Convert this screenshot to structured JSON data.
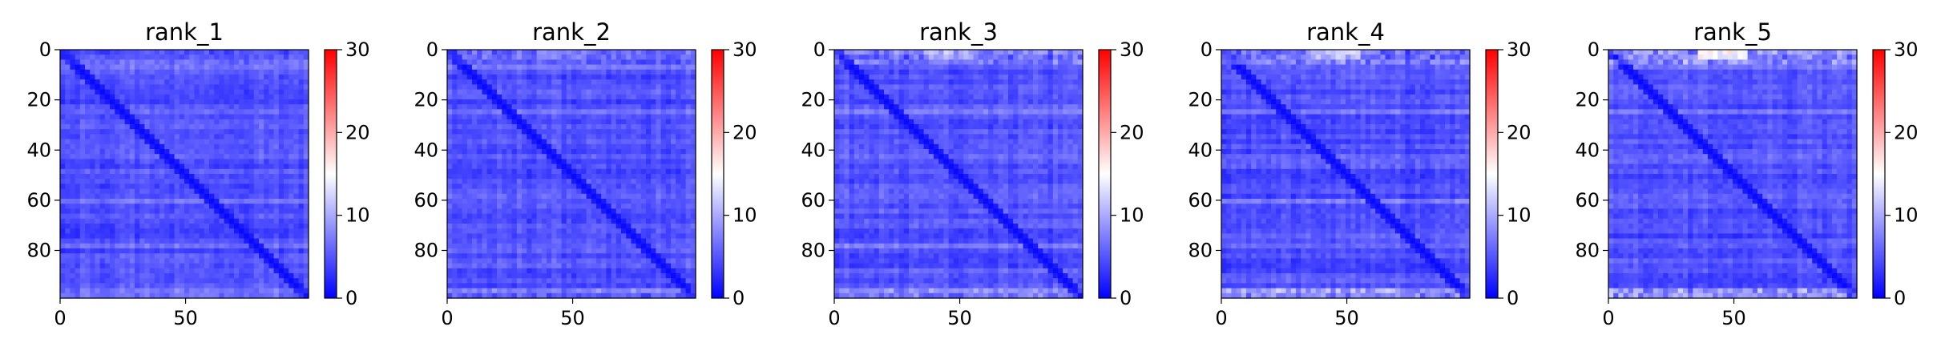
{
  "chart_data": [
    {
      "type": "heatmap",
      "title": "rank_1",
      "x_ticks": [
        "0",
        "50"
      ],
      "x_tick_values": [
        0,
        50
      ],
      "y_ticks": [
        "0",
        "20",
        "40",
        "60",
        "80"
      ],
      "y_tick_values": [
        0,
        20,
        40,
        60,
        80
      ],
      "matrix_size": 100,
      "xlim": [
        0,
        99
      ],
      "ylim": [
        99,
        0
      ],
      "colormap": "bwr",
      "color_range": [
        0,
        30
      ],
      "colorbar_ticks": [
        "0",
        "10",
        "20",
        "30"
      ],
      "colorbar_tick_values": [
        0,
        10,
        20,
        30
      ],
      "grid": false
    },
    {
      "type": "heatmap",
      "title": "rank_2",
      "x_ticks": [
        "0",
        "50"
      ],
      "x_tick_values": [
        0,
        50
      ],
      "y_ticks": [
        "0",
        "20",
        "40",
        "60",
        "80"
      ],
      "y_tick_values": [
        0,
        20,
        40,
        60,
        80
      ],
      "matrix_size": 100,
      "xlim": [
        0,
        99
      ],
      "ylim": [
        99,
        0
      ],
      "colormap": "bwr",
      "color_range": [
        0,
        30
      ],
      "colorbar_ticks": [
        "0",
        "10",
        "20",
        "30"
      ],
      "colorbar_tick_values": [
        0,
        10,
        20,
        30
      ],
      "grid": false
    },
    {
      "type": "heatmap",
      "title": "rank_3",
      "x_ticks": [
        "0",
        "50"
      ],
      "x_tick_values": [
        0,
        50
      ],
      "y_ticks": [
        "0",
        "20",
        "40",
        "60",
        "80"
      ],
      "y_tick_values": [
        0,
        20,
        40,
        60,
        80
      ],
      "matrix_size": 100,
      "xlim": [
        0,
        99
      ],
      "ylim": [
        99,
        0
      ],
      "colormap": "bwr",
      "color_range": [
        0,
        30
      ],
      "colorbar_ticks": [
        "0",
        "10",
        "20",
        "30"
      ],
      "colorbar_tick_values": [
        0,
        10,
        20,
        30
      ],
      "grid": false
    },
    {
      "type": "heatmap",
      "title": "rank_4",
      "x_ticks": [
        "0",
        "50"
      ],
      "x_tick_values": [
        0,
        50
      ],
      "y_ticks": [
        "0",
        "20",
        "40",
        "60",
        "80"
      ],
      "y_tick_values": [
        0,
        20,
        40,
        60,
        80
      ],
      "matrix_size": 100,
      "xlim": [
        0,
        99
      ],
      "ylim": [
        99,
        0
      ],
      "colormap": "bwr",
      "color_range": [
        0,
        30
      ],
      "colorbar_ticks": [
        "0",
        "10",
        "20",
        "30"
      ],
      "colorbar_tick_values": [
        0,
        10,
        20,
        30
      ],
      "grid": false
    },
    {
      "type": "heatmap",
      "title": "rank_5",
      "x_ticks": [
        "0",
        "50"
      ],
      "x_tick_values": [
        0,
        50
      ],
      "y_ticks": [
        "0",
        "20",
        "40",
        "60",
        "80"
      ],
      "y_tick_values": [
        0,
        20,
        40,
        60,
        80
      ],
      "matrix_size": 100,
      "xlim": [
        0,
        99
      ],
      "ylim": [
        99,
        0
      ],
      "colormap": "bwr",
      "color_range": [
        0,
        30
      ],
      "colorbar_ticks": [
        "0",
        "10",
        "20",
        "30"
      ],
      "colorbar_tick_values": [
        0,
        10,
        20,
        30
      ],
      "grid": false
    }
  ],
  "colors": {
    "low": "#0000ff",
    "mid": "#ffffff",
    "high": "#ff0000"
  }
}
